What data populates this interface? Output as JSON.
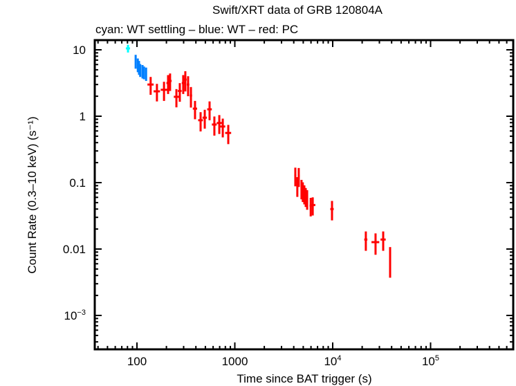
{
  "chart_data": {
    "type": "scatter",
    "title": "Swift/XRT data of GRB 120804A",
    "subtitle": "cyan: WT settling – blue: WT – red: PC",
    "xlabel": "Time since BAT trigger (s)",
    "ylabel": "Count Rate (0.3–10 keV) (s⁻¹)",
    "xscale": "log",
    "yscale": "log",
    "xlim": [
      40,
      700000
    ],
    "ylim": [
      0.00025,
      15
    ],
    "x_ticks": [
      {
        "value": 100,
        "label": "100"
      },
      {
        "value": 1000,
        "label": "1000"
      },
      {
        "value": 10000,
        "label": "10",
        "exp": "4"
      },
      {
        "value": 100000,
        "label": "10",
        "exp": "5"
      }
    ],
    "y_ticks": [
      {
        "value": 10,
        "label": "10"
      },
      {
        "value": 1,
        "label": "1"
      },
      {
        "value": 0.1,
        "label": "0.1"
      },
      {
        "value": 0.01,
        "label": "0.01"
      },
      {
        "value": 0.001,
        "label": "10",
        "exp": "−3"
      }
    ],
    "series": [
      {
        "name": "WT settling",
        "color": "#00ffff",
        "points": [
          {
            "x": 81,
            "y": 10.5,
            "xerr": 4,
            "yerr": 1.4
          }
        ]
      },
      {
        "name": "WT",
        "color": "#0080ff",
        "points": [
          {
            "x": 97,
            "y": 6.8,
            "xerr": 1.2,
            "yerr": 1.6
          },
          {
            "x": 102,
            "y": 6.0,
            "xerr": 1.2,
            "yerr": 1.4
          },
          {
            "x": 105,
            "y": 5.5,
            "xerr": 1.2,
            "yerr": 1.3
          },
          {
            "x": 108,
            "y": 5.0,
            "xerr": 1.5,
            "yerr": 1.1
          },
          {
            "x": 114,
            "y": 4.8,
            "xerr": 1.5,
            "yerr": 1.1
          },
          {
            "x": 118,
            "y": 4.6,
            "xerr": 1.5,
            "yerr": 1.0
          },
          {
            "x": 124,
            "y": 4.4,
            "xerr": 2,
            "yerr": 1.0
          }
        ]
      },
      {
        "name": "PC",
        "color": "#ff0000",
        "points": [
          {
            "x": 138,
            "y": 3.0,
            "xerr": 10,
            "yerr": 0.9
          },
          {
            "x": 160,
            "y": 2.37,
            "xerr": 12,
            "yerr": 0.7
          },
          {
            "x": 189,
            "y": 2.5,
            "xerr": 14,
            "yerr": 0.8
          },
          {
            "x": 208,
            "y": 3.16,
            "xerr": 8,
            "yerr": 1.0
          },
          {
            "x": 218,
            "y": 3.4,
            "xerr": 8,
            "yerr": 1.0
          },
          {
            "x": 253,
            "y": 1.96,
            "xerr": 15,
            "yerr": 0.6
          },
          {
            "x": 274,
            "y": 2.4,
            "xerr": 12,
            "yerr": 0.75
          },
          {
            "x": 297,
            "y": 3.16,
            "xerr": 10,
            "yerr": 1.0
          },
          {
            "x": 312,
            "y": 3.56,
            "xerr": 10,
            "yerr": 1.2
          },
          {
            "x": 333,
            "y": 3.0,
            "xerr": 10,
            "yerr": 1.0
          },
          {
            "x": 356,
            "y": 2.05,
            "xerr": 10,
            "yerr": 0.7
          },
          {
            "x": 392,
            "y": 1.3,
            "xerr": 20,
            "yerr": 0.4
          },
          {
            "x": 447,
            "y": 0.87,
            "xerr": 25,
            "yerr": 0.28
          },
          {
            "x": 493,
            "y": 0.95,
            "xerr": 25,
            "yerr": 0.3
          },
          {
            "x": 552,
            "y": 1.27,
            "xerr": 30,
            "yerr": 0.4
          },
          {
            "x": 618,
            "y": 0.75,
            "xerr": 35,
            "yerr": 0.24
          },
          {
            "x": 694,
            "y": 0.79,
            "xerr": 40,
            "yerr": 0.25
          },
          {
            "x": 753,
            "y": 0.7,
            "xerr": 45,
            "yerr": 0.22
          },
          {
            "x": 857,
            "y": 0.56,
            "xerr": 60,
            "yerr": 0.18
          },
          {
            "x": 4150,
            "y": 0.128,
            "xerr": 100,
            "yerr": 0.04
          },
          {
            "x": 4500,
            "y": 0.126,
            "xerr": 100,
            "yerr": 0.04
          },
          {
            "x": 4350,
            "y": 0.091,
            "xerr": 80,
            "yerr": 0.03
          },
          {
            "x": 4800,
            "y": 0.083,
            "xerr": 80,
            "yerr": 0.027
          },
          {
            "x": 4950,
            "y": 0.076,
            "xerr": 80,
            "yerr": 0.025
          },
          {
            "x": 5130,
            "y": 0.069,
            "xerr": 80,
            "yerr": 0.022
          },
          {
            "x": 5300,
            "y": 0.063,
            "xerr": 80,
            "yerr": 0.02
          },
          {
            "x": 5480,
            "y": 0.058,
            "xerr": 80,
            "yerr": 0.019
          },
          {
            "x": 5960,
            "y": 0.045,
            "xerr": 150,
            "yerr": 0.014
          },
          {
            "x": 6250,
            "y": 0.046,
            "xerr": 400,
            "yerr": 0.014
          },
          {
            "x": 9840,
            "y": 0.04,
            "xerr": 400,
            "yerr": 0.013
          },
          {
            "x": 21800,
            "y": 0.0139,
            "xerr": 800,
            "yerr": 0.0045
          },
          {
            "x": 27400,
            "y": 0.0127,
            "xerr": 2500,
            "yerr": 0.0045
          },
          {
            "x": 32800,
            "y": 0.0139,
            "xerr": 2000,
            "yerr": 0.0045
          },
          {
            "x": 38600,
            "y": 0.0072,
            "xerr": 800,
            "yerr": 0.0035
          }
        ]
      }
    ],
    "grid": false,
    "legend": "none"
  }
}
